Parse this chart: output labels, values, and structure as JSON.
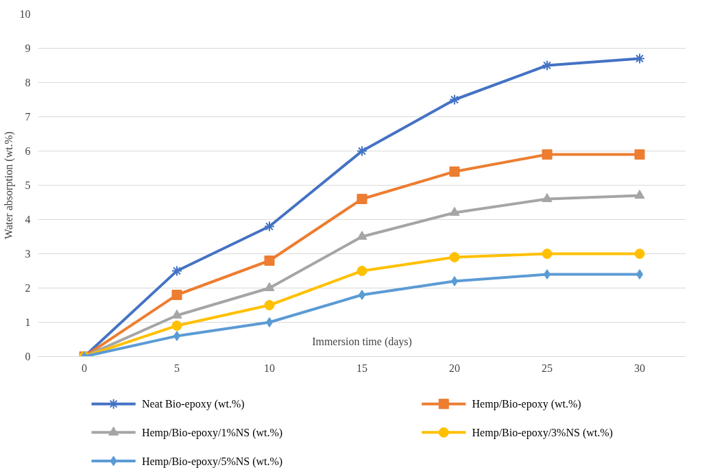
{
  "chart_data": {
    "type": "line",
    "xlabel": "Immersion time (days)",
    "ylabel": "Water absorption (wt.%)",
    "categories": [
      "0",
      "5",
      "10",
      "15",
      "20",
      "25",
      "30"
    ],
    "ylim": [
      0,
      10
    ],
    "yticks": [
      0,
      1,
      2,
      3,
      4,
      5,
      6,
      7,
      8,
      9,
      10
    ],
    "grid": "y",
    "legend": "bottom",
    "line_style": "solid",
    "series": [
      {
        "name": "Neat Bio-epoxy (wt.%)",
        "color": "#4472c4",
        "marker": "cross",
        "values": [
          0,
          2.5,
          3.8,
          6,
          7.5,
          8.5,
          8.7
        ]
      },
      {
        "name": "Hemp/Bio-epoxy (wt.%)",
        "color": "#ed7d31",
        "marker": "square",
        "values": [
          0,
          1.8,
          2.8,
          4.6,
          5.4,
          5.9,
          5.9
        ]
      },
      {
        "name": "Hemp/Bio-epoxy/1%NS (wt.%)",
        "color": "#a5a5a5",
        "marker": "triangle",
        "values": [
          0,
          1.2,
          2,
          3.5,
          4.2,
          4.6,
          4.7
        ]
      },
      {
        "name": "Hemp/Bio-epoxy/3%NS (wt.%)",
        "color": "#ffc000",
        "marker": "circle",
        "values": [
          0,
          0.9,
          1.5,
          2.5,
          2.9,
          3,
          3
        ]
      },
      {
        "name": "Hemp/Bio-epoxy/5%NS (wt.%)",
        "color": "#5b9bd5",
        "marker": "diamond",
        "values": [
          0,
          0.6,
          1,
          1.8,
          2.2,
          2.4,
          2.4
        ]
      }
    ]
  }
}
